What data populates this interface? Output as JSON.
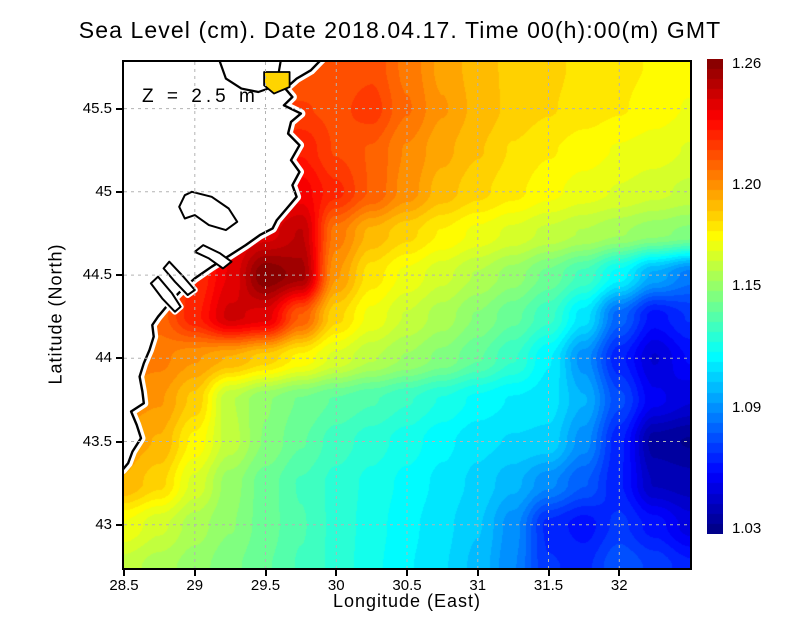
{
  "title": "Sea Level (cm). Date 2018.04.17. Time 00(h):00(m) GMT",
  "annotation": "Z = 2.5 m",
  "axes": {
    "x_label": "Longitude (East)",
    "y_label": "Latitude (North)",
    "x_ticks": [
      {
        "value": 28.5,
        "text": "28.5"
      },
      {
        "value": 29,
        "text": "29"
      },
      {
        "value": 29.5,
        "text": "29.5"
      },
      {
        "value": 30,
        "text": "30"
      },
      {
        "value": 30.5,
        "text": "30.5"
      },
      {
        "value": 31,
        "text": "31"
      },
      {
        "value": 31.5,
        "text": "31.5"
      },
      {
        "value": 32,
        "text": "32"
      }
    ],
    "y_ticks": [
      {
        "value": 45.5,
        "text": "45.5"
      },
      {
        "value": 45,
        "text": "45"
      },
      {
        "value": 44.5,
        "text": "44.5"
      },
      {
        "value": 44,
        "text": "44"
      },
      {
        "value": 43.5,
        "text": "43.5"
      },
      {
        "value": 43,
        "text": "43"
      }
    ]
  },
  "colorbar": {
    "vmin": 1.0275,
    "vmax": 1.2625,
    "segment_step": 0.005,
    "labels": [
      {
        "value": 1.26,
        "text": "1.26"
      },
      {
        "value": 1.2,
        "text": "1.20"
      },
      {
        "value": 1.15,
        "text": "1.15"
      },
      {
        "value": 1.09,
        "text": "1.09"
      },
      {
        "value": 1.03,
        "text": "1.03"
      }
    ]
  },
  "colors": {
    "coastline": "#000000",
    "land": "#ffffff",
    "mask_gap": "#ffffff",
    "gridline": "#b3b3b3",
    "lagoon_fill": "#ffd400",
    "frame": "#000000",
    "text": "#000000"
  },
  "chart_data": {
    "type": "heatmap",
    "title": "Sea Level (cm). Date 2018.04.17. Time 00(h):00(m) GMT",
    "xlabel": "Longitude (East)",
    "ylabel": "Latitude (North)",
    "depth_annotation": "Z = 2.5 m",
    "colormap": "jet",
    "value_label_range": [
      1.03,
      1.26
    ],
    "plot_lon_range": [
      28.5,
      32.5
    ],
    "plot_lat_range": [
      42.74,
      45.78
    ],
    "gridlines": {
      "x": [
        29,
        29.5,
        30,
        30.5,
        31,
        31.5,
        32
      ],
      "y": [
        43,
        43.5,
        44,
        44.5,
        45,
        45.5
      ],
      "style": "dashed"
    },
    "lon": [
      28.5,
      28.75,
      29.0,
      29.25,
      29.5,
      29.75,
      30.0,
      30.25,
      30.5,
      30.75,
      31.0,
      31.25,
      31.5,
      31.75,
      32.0,
      32.25,
      32.5
    ],
    "lat": [
      45.75,
      45.5,
      45.25,
      45.0,
      44.75,
      44.5,
      44.25,
      44.0,
      43.75,
      43.5,
      43.25,
      43.0,
      42.75
    ],
    "values": [
      [
        1.212,
        1.212,
        1.212,
        1.212,
        1.212,
        1.212,
        1.213,
        1.216,
        1.206,
        1.196,
        1.19,
        1.186,
        1.184,
        1.181,
        1.179,
        1.177,
        1.175
      ],
      [
        1.218,
        1.218,
        1.218,
        1.218,
        1.218,
        1.218,
        1.216,
        1.22,
        1.208,
        1.198,
        1.191,
        1.186,
        1.183,
        1.18,
        1.178,
        1.175,
        1.172
      ],
      [
        1.224,
        1.224,
        1.224,
        1.224,
        1.226,
        1.227,
        1.217,
        1.212,
        1.202,
        1.194,
        1.188,
        1.182,
        1.178,
        1.175,
        1.172,
        1.17,
        1.167
      ],
      [
        1.23,
        1.23,
        1.23,
        1.231,
        1.232,
        1.235,
        1.224,
        1.212,
        1.2,
        1.19,
        1.184,
        1.179,
        1.174,
        1.17,
        1.167,
        1.164,
        1.161
      ],
      [
        1.233,
        1.233,
        1.234,
        1.236,
        1.24,
        1.248,
        1.205,
        1.191,
        1.184,
        1.177,
        1.171,
        1.166,
        1.161,
        1.157,
        1.153,
        1.149,
        1.146
      ],
      [
        1.218,
        1.216,
        1.222,
        1.238,
        1.262,
        1.255,
        1.198,
        1.18,
        1.171,
        1.164,
        1.157,
        1.15,
        1.141,
        1.131,
        1.115,
        1.096,
        1.085
      ],
      [
        1.212,
        1.21,
        1.226,
        1.244,
        1.24,
        1.212,
        1.184,
        1.171,
        1.162,
        1.155,
        1.147,
        1.139,
        1.129,
        1.11,
        1.08,
        1.06,
        1.068
      ],
      [
        1.206,
        1.204,
        1.198,
        1.192,
        1.185,
        1.176,
        1.166,
        1.158,
        1.152,
        1.146,
        1.138,
        1.128,
        1.113,
        1.09,
        1.064,
        1.047,
        1.058
      ],
      [
        1.2,
        1.198,
        1.186,
        1.158,
        1.148,
        1.142,
        1.137,
        1.133,
        1.128,
        1.122,
        1.116,
        1.112,
        1.11,
        1.098,
        1.074,
        1.054,
        1.048
      ],
      [
        1.196,
        1.192,
        1.176,
        1.16,
        1.147,
        1.138,
        1.13,
        1.125,
        1.12,
        1.114,
        1.109,
        1.107,
        1.106,
        1.09,
        1.064,
        1.035,
        1.032
      ],
      [
        1.192,
        1.184,
        1.166,
        1.15,
        1.14,
        1.132,
        1.126,
        1.121,
        1.116,
        1.111,
        1.106,
        1.099,
        1.089,
        1.078,
        1.063,
        1.042,
        1.04
      ],
      [
        1.172,
        1.164,
        1.155,
        1.148,
        1.14,
        1.133,
        1.126,
        1.12,
        1.114,
        1.109,
        1.103,
        1.09,
        1.066,
        1.06,
        1.069,
        1.06,
        1.05
      ],
      [
        1.16,
        1.155,
        1.15,
        1.144,
        1.138,
        1.132,
        1.126,
        1.119,
        1.113,
        1.108,
        1.101,
        1.088,
        1.068,
        1.066,
        1.077,
        1.071,
        1.064
      ]
    ],
    "map": {
      "coast": [
        [
          29.9,
          45.8
        ],
        [
          29.82,
          45.73
        ],
        [
          29.72,
          45.68
        ],
        [
          29.64,
          45.62
        ],
        [
          29.69,
          45.57
        ],
        [
          29.63,
          45.52
        ],
        [
          29.75,
          45.47
        ],
        [
          29.68,
          45.42
        ],
        [
          29.66,
          45.35
        ],
        [
          29.74,
          45.28
        ],
        [
          29.68,
          45.19
        ],
        [
          29.74,
          45.12
        ],
        [
          29.69,
          45.04
        ],
        [
          29.72,
          44.97
        ],
        [
          29.65,
          44.9
        ],
        [
          29.58,
          44.83
        ],
        [
          29.55,
          44.78
        ],
        [
          29.46,
          44.74
        ],
        [
          29.36,
          44.68
        ],
        [
          29.25,
          44.62
        ],
        [
          29.12,
          44.55
        ],
        [
          29.0,
          44.48
        ],
        [
          28.92,
          44.42
        ],
        [
          28.85,
          44.36
        ],
        [
          28.79,
          44.3
        ],
        [
          28.74,
          44.25
        ],
        [
          28.7,
          44.2
        ],
        [
          28.71,
          44.13
        ],
        [
          28.68,
          44.05
        ],
        [
          28.64,
          43.97
        ],
        [
          28.61,
          43.89
        ],
        [
          28.63,
          43.8
        ],
        [
          28.64,
          43.73
        ],
        [
          28.55,
          43.68
        ],
        [
          28.59,
          43.6
        ],
        [
          28.62,
          43.52
        ],
        [
          28.56,
          43.44
        ],
        [
          28.53,
          43.37
        ],
        [
          28.49,
          43.33
        ],
        [
          28.45,
          43.33
        ],
        [
          28.45,
          45.8
        ]
      ],
      "lakes": [
        [
          [
            28.98,
            45.0
          ],
          [
            29.12,
            44.97
          ],
          [
            29.24,
            44.9
          ],
          [
            29.3,
            44.82
          ],
          [
            29.22,
            44.77
          ],
          [
            29.1,
            44.8
          ],
          [
            29.0,
            44.86
          ],
          [
            28.93,
            44.84
          ],
          [
            28.89,
            44.91
          ],
          [
            28.93,
            44.98
          ]
        ],
        [
          [
            29.06,
            44.68
          ],
          [
            29.18,
            44.63
          ],
          [
            29.26,
            44.58
          ],
          [
            29.2,
            44.54
          ],
          [
            29.1,
            44.6
          ],
          [
            29.0,
            44.64
          ]
        ]
      ],
      "spits": [
        [
          [
            28.82,
            44.58
          ],
          [
            28.92,
            44.49
          ],
          [
            29.0,
            44.41
          ],
          [
            28.95,
            44.38
          ],
          [
            28.86,
            44.46
          ],
          [
            28.78,
            44.54
          ]
        ],
        [
          [
            28.74,
            44.49
          ],
          [
            28.84,
            44.39
          ],
          [
            28.9,
            44.31
          ],
          [
            28.86,
            44.28
          ],
          [
            28.77,
            44.36
          ],
          [
            28.69,
            44.45
          ]
        ]
      ],
      "estuary_line": [
        [
          29.17,
          45.8
        ],
        [
          29.22,
          45.68
        ],
        [
          29.33,
          45.62
        ],
        [
          29.45,
          45.6
        ],
        [
          29.55,
          45.63
        ],
        [
          29.59,
          45.7
        ],
        [
          29.61,
          45.8
        ]
      ],
      "lagoon_patch": [
        [
          29.49,
          45.72
        ],
        [
          29.67,
          45.72
        ],
        [
          29.67,
          45.63
        ],
        [
          29.56,
          45.59
        ],
        [
          29.49,
          45.64
        ]
      ]
    }
  }
}
